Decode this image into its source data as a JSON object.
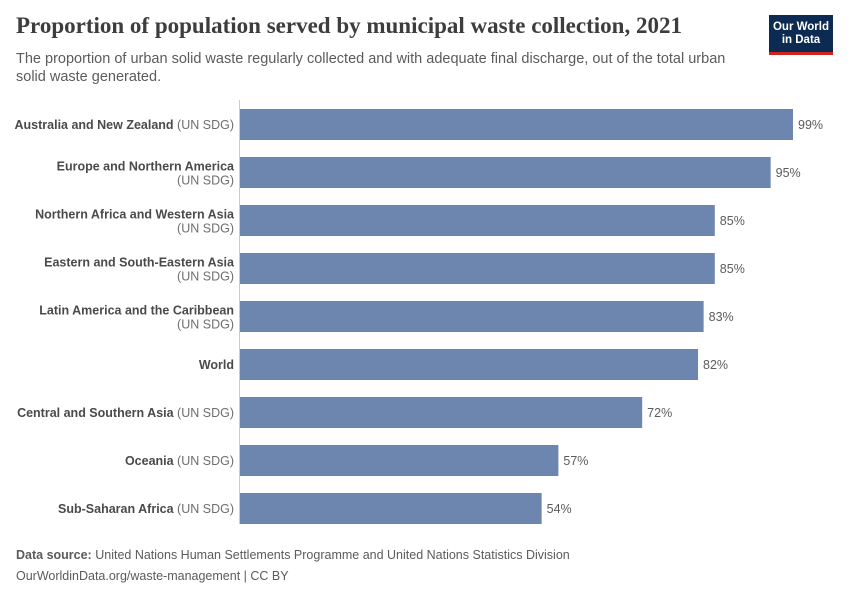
{
  "header": {
    "title": "Proportion of population served by municipal waste collection, 2021",
    "subtitle": "The proportion of urban solid waste regularly collected and with adequate final discharge, out of the total urban solid waste generated.",
    "logo_line1": "Our World",
    "logo_line2": "in Data"
  },
  "footer": {
    "source_label": "Data source:",
    "source_text": "United Nations Human Settlements Programme and United Nations Statistics Division",
    "license": "OurWorldinData.org/waste-management | CC BY"
  },
  "colors": {
    "bar": "#6d86b0",
    "axis": "#cccccc",
    "logo_bg": "#0d2a53",
    "logo_accent": "#ce261e"
  },
  "chart_data": {
    "type": "bar",
    "orientation": "horizontal",
    "title": "Proportion of population served by municipal waste collection, 2021",
    "unit": "%",
    "xlim": [
      0,
      100
    ],
    "grid": false,
    "categories": [
      {
        "name": "Australia and New Zealand",
        "suffix": "(UN SDG)",
        "wrap": false
      },
      {
        "name": "Europe and Northern America",
        "suffix": "(UN SDG)",
        "wrap": true
      },
      {
        "name": "Northern Africa and Western Asia",
        "suffix": "(UN SDG)",
        "wrap": true
      },
      {
        "name": "Eastern and South-Eastern Asia",
        "suffix": "(UN SDG)",
        "wrap": true
      },
      {
        "name": "Latin America and the Caribbean",
        "suffix": "(UN SDG)",
        "wrap": true
      },
      {
        "name": "World",
        "suffix": "",
        "wrap": false
      },
      {
        "name": "Central and Southern Asia",
        "suffix": "(UN SDG)",
        "wrap": false
      },
      {
        "name": "Oceania",
        "suffix": "(UN SDG)",
        "wrap": false
      },
      {
        "name": "Sub-Saharan Africa",
        "suffix": "(UN SDG)",
        "wrap": false
      }
    ],
    "values": [
      99,
      95,
      85,
      85,
      83,
      82,
      72,
      57,
      54
    ],
    "value_labels": [
      "99%",
      "95%",
      "85%",
      "85%",
      "83%",
      "82%",
      "72%",
      "57%",
      "54%"
    ]
  }
}
